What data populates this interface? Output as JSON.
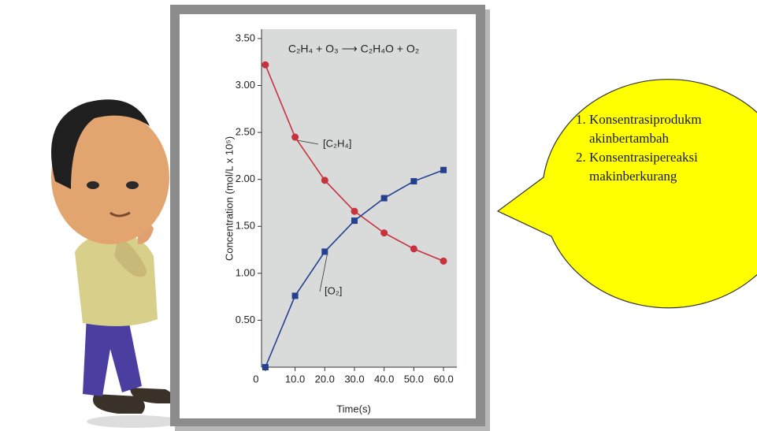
{
  "chart_data": {
    "type": "line",
    "title": "C₂H₄ + O₃ ⟶ C₂H₄O + O₂",
    "x_label": "Time(s)",
    "y_label": "Concentration (mol/L x 10⁵)",
    "x": [
      0,
      10,
      20,
      30,
      40,
      50,
      60
    ],
    "series": [
      {
        "name": "[C₂H₄]",
        "color": "#c8323f",
        "marker": "circle",
        "values": [
          3.22,
          2.45,
          1.99,
          1.66,
          1.43,
          1.26,
          1.13
        ]
      },
      {
        "name": "[O₂]",
        "color": "#25408f",
        "marker": "square",
        "values": [
          0,
          0.76,
          1.23,
          1.56,
          1.8,
          1.98,
          2.1
        ]
      }
    ],
    "xlim": [
      -1.3,
      64.5
    ],
    "ylim": [
      0,
      3.6
    ],
    "xticks": [
      0,
      {
        "value": 10,
        "label": "10.0"
      },
      {
        "value": 20,
        "label": "20.0"
      },
      {
        "value": 30,
        "label": "30.0"
      },
      {
        "value": 40,
        "label": "40.0"
      },
      {
        "value": 50,
        "label": "50.0"
      },
      {
        "value": 60,
        "label": "60.0"
      }
    ],
    "yticks": [
      {
        "value": 0.5,
        "label": "0.50"
      },
      {
        "value": 1,
        "label": "1.00"
      },
      {
        "value": 1.5,
        "label": "1.50"
      },
      {
        "value": 2,
        "label": "2.00"
      },
      {
        "value": 2.5,
        "label": "2.50"
      },
      {
        "value": 3,
        "label": "3.00"
      },
      {
        "value": 3.5,
        "label": "3.50"
      }
    ]
  },
  "callout": {
    "items": [
      "Konsentrasiprodukmakinbertambah",
      "Konsentrasipereaksimakinberkurang"
    ]
  }
}
